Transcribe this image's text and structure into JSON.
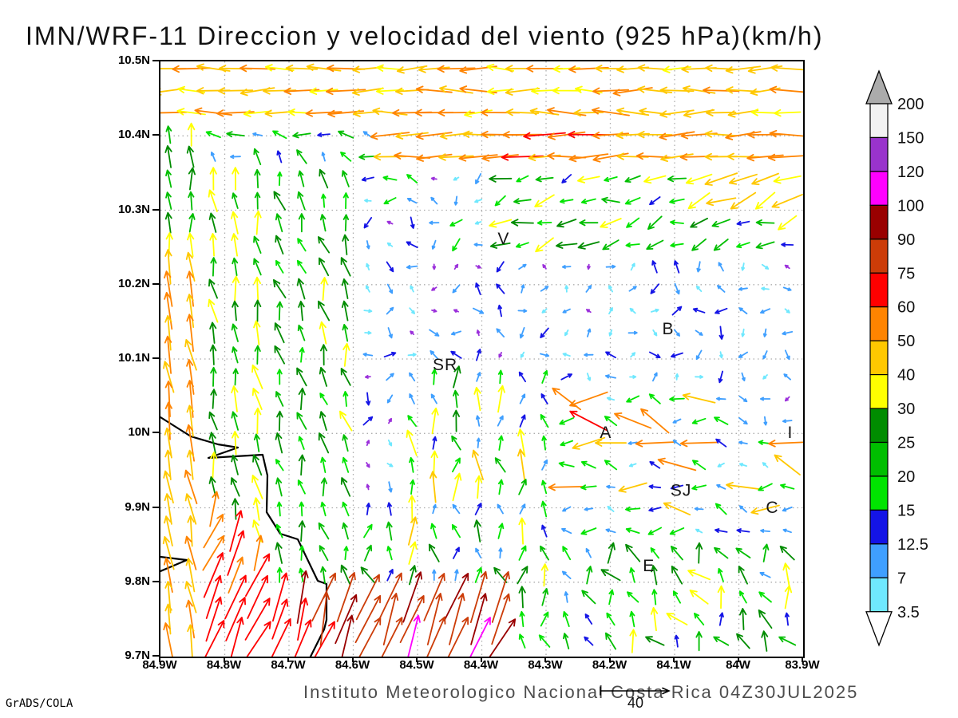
{
  "title": "IMN/WRF-11 Direccion y velocidad del viento (925 hPa)(km/h)",
  "footer": {
    "credit": "Instituto Meteorologico Nacional Costa Rica 04Z30JUL2025",
    "engine": "GrADS/COLA"
  },
  "reference_vector": {
    "label": "40"
  },
  "chart_data": {
    "type": "vector-field",
    "title": "IMN/WRF-11 Direccion y velocidad del viento (925 hPa)(km/h)",
    "model": "IMN/WRF-11",
    "variable": "Direccion y velocidad del viento",
    "level": "925 hPa",
    "units": "km/h",
    "valid_time": "04Z30JUL2025",
    "grid_on": true,
    "x_axis": {
      "labels": [
        "84.9W",
        "84.8W",
        "84.7W",
        "84.6W",
        "84.5W",
        "84.4W",
        "84.3W",
        "84.2W",
        "84.1W",
        "84W",
        "83.9W"
      ],
      "min_deg_w": 84.9,
      "max_deg_w": 83.9
    },
    "y_axis": {
      "labels": [
        "10.5N",
        "10.4N",
        "10.3N",
        "10.2N",
        "10.1N",
        "10N",
        "9.9N",
        "9.8N",
        "9.7N"
      ],
      "min_deg_n": 9.7,
      "max_deg_n": 10.5
    },
    "legend": {
      "position": "right",
      "units": "km/h",
      "levels": [
        3.5,
        7,
        12.5,
        15,
        20,
        25,
        30,
        40,
        50,
        60,
        75,
        90,
        100,
        120,
        150,
        200
      ],
      "tick_labels": [
        "200",
        "150",
        "120",
        "100",
        "90",
        "75",
        "60",
        "50",
        "40",
        "30",
        "25",
        "20",
        "15",
        "12.5",
        "7",
        "3.5"
      ],
      "colors": [
        "#6FE8FE",
        "#3F9FFF",
        "#1414E6",
        "#00E400",
        "#00BE00",
        "#008C00",
        "#FFFF00",
        "#FFC800",
        "#FF8400",
        "#FF0000",
        "#CC3C08",
        "#990000",
        "#FF00FF",
        "#9933CC",
        "#F2F2F2"
      ],
      "below_color": "#9B30DB",
      "above_color": "#ABABAB"
    },
    "reference_speed": 40,
    "cities": [
      {
        "label": "V",
        "fx": 0.534,
        "fy": 0.296
      },
      {
        "label": "B",
        "fx": 0.79,
        "fy": 0.448
      },
      {
        "label": "SR",
        "fx": 0.443,
        "fy": 0.508
      },
      {
        "label": "A",
        "fx": 0.693,
        "fy": 0.622
      },
      {
        "label": "SJ",
        "fx": 0.81,
        "fy": 0.719
      },
      {
        "label": "C",
        "fx": 0.952,
        "fy": 0.748
      },
      {
        "label": "E",
        "fx": 0.76,
        "fy": 0.846
      },
      {
        "label": "I",
        "fx": 0.98,
        "fy": 0.622
      }
    ],
    "coastline": {
      "coord_space": "plot_px_805x746",
      "segments": [
        [
          [
            0,
            446
          ],
          [
            38,
            470
          ],
          [
            72,
            480
          ],
          [
            97,
            484
          ],
          [
            60,
            497
          ],
          [
            128,
            493
          ],
          [
            134,
            519
          ],
          [
            133,
            565
          ],
          [
            150,
            592
          ],
          [
            172,
            599
          ],
          [
            197,
            651
          ],
          [
            208,
            655
          ],
          [
            208,
            700
          ],
          [
            205,
            712
          ],
          [
            188,
            746
          ]
        ],
        [
          [
            0,
            621
          ],
          [
            33,
            625
          ],
          [
            0,
            639
          ]
        ]
      ]
    },
    "grid": {
      "cols": 29,
      "rows": 27
    },
    "seed": 11,
    "wind_regions": [
      {
        "name": "top-easterly-band",
        "when": {
          "fyMax": 0.09
        },
        "dir": 180,
        "dirJitter": 10,
        "spdMin": 36,
        "spdMax": 58
      },
      {
        "name": "left-coast-column-upper",
        "when": {
          "fxMax": 0.06,
          "fyMax": 0.34
        },
        "dir": 92,
        "dirJitter": 12,
        "spdMin": 20,
        "spdMax": 34
      },
      {
        "name": "north-band-left-weak",
        "when": {
          "fyMax": 0.168,
          "fxMax": 0.33
        },
        "dir": 150,
        "dirJitter": 45,
        "spdMin": 8,
        "spdMax": 24
      },
      {
        "name": "north-orange-easterlies",
        "when": {
          "fyMax": 0.168
        },
        "dir": 183,
        "dirJitter": 8,
        "spdMin": 44,
        "spdMax": 62
      },
      {
        "name": "left-coast-column",
        "when": {
          "fxMax": 0.06
        },
        "dir": 101,
        "dirJitter": 9,
        "spdMin": 40,
        "spdMax": 56
      },
      {
        "name": "pacific-onshore-strong",
        "when": {
          "lineA": 0.6,
          "lineB": 1.45
        },
        "dir": 68,
        "dirJitter": 13,
        "spdMin": 38,
        "spdMax": 80,
        "biasY": true
      },
      {
        "name": "south-coast-strong",
        "when": {
          "fyMin": 0.865,
          "fxMax": 0.54
        },
        "dir": 70,
        "dirJitter": 14,
        "spdMin": 55,
        "spdMax": 105,
        "biasY": true
      },
      {
        "name": "nicoya-coast-strip",
        "when": {
          "fxMax": 0.17
        },
        "dir": 100,
        "dirJitter": 14,
        "spdMin": 20,
        "spdMax": 36
      },
      {
        "name": "west-green-strip",
        "when": {
          "fxMax": 0.3,
          "fyMin": 0.168
        },
        "dir": 104,
        "dirJitter": 20,
        "spdMin": 15,
        "spdMax": 31
      },
      {
        "name": "northeast-corner",
        "when": {
          "fyMax": 0.26,
          "fxMin": 0.82
        },
        "dir": 205,
        "dirJitter": 18,
        "spdMin": 32,
        "spdMax": 52
      },
      {
        "name": "northeast-flow",
        "when": {
          "fyMax": 0.33,
          "fxMin": 0.52
        },
        "dir": 197,
        "dirJitter": 28,
        "spdMin": 13,
        "spdMax": 31
      },
      {
        "name": "north-central-weak",
        "when": {
          "fyMax": 0.33
        },
        "dir": 210,
        "dirJitter": 80,
        "spdMin": 3,
        "spdMax": 17
      },
      {
        "name": "east-edge-weak",
        "when": {
          "fxMin": 0.88,
          "fyMax": 0.64
        },
        "dir": 240,
        "dirJitter": 100,
        "spdMin": 2.5,
        "spdMax": 11
      },
      {
        "name": "central-valley-mixed",
        "when": {
          "fxMin": 0.6,
          "fyMin": 0.56,
          "fyMax": 0.8
        },
        "dir": 170,
        "dirJitter": 40,
        "spdMin": 5,
        "spdMax": 20,
        "mix": {
          "prob": 0.22,
          "dir": 165,
          "dirJitter": 35,
          "spdMin": 38,
          "spdMax": 62
        }
      },
      {
        "name": "southeast-green",
        "when": {
          "fxMin": 0.6,
          "fyMin": 0.8
        },
        "dir": 115,
        "dirJitter": 45,
        "spdMin": 10,
        "spdMax": 33
      },
      {
        "name": "center-south-mixed",
        "when": {
          "fxMin": 0.38,
          "fxMax": 0.6,
          "fyMin": 0.5,
          "fyMax": 0.8
        },
        "dir": 95,
        "dirJitter": 35,
        "spdMin": 8,
        "spdMax": 22,
        "mix": {
          "prob": 0.35,
          "dir": 92,
          "dirJitter": 18,
          "spdMin": 28,
          "spdMax": 46
        }
      },
      {
        "name": "south-central-band",
        "when": {
          "fyMin": 0.74
        },
        "dir": 95,
        "dirJitter": 40,
        "spdMin": 10,
        "spdMax": 32
      },
      {
        "name": "interior-light-variable",
        "when": {},
        "dir": 0,
        "dirJitter": 180,
        "spdMin": 2,
        "spdMax": 15
      }
    ]
  }
}
